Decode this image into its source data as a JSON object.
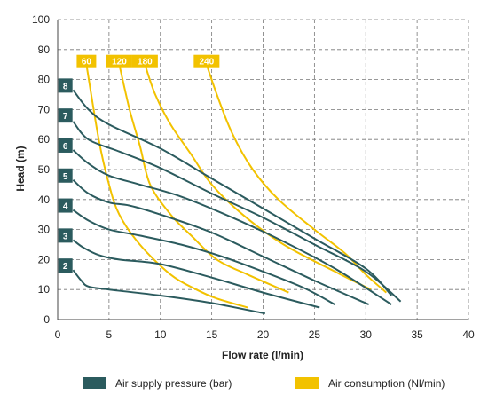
{
  "chart_data": {
    "type": "line",
    "xlabel": "Flow rate (l/min)",
    "ylabel": "Head (m)",
    "xlim": [
      0,
      40
    ],
    "ylim": [
      0,
      100
    ],
    "xticks": [
      "0",
      "5",
      "10",
      "15",
      "20",
      "25",
      "30",
      "35",
      "40"
    ],
    "yticks": [
      "0",
      "10",
      "20",
      "30",
      "40",
      "50",
      "60",
      "70",
      "80",
      "90",
      "100"
    ],
    "grid": true,
    "legend_position": "bottom",
    "legend": [
      {
        "label": "Air supply pressure (bar)",
        "color": "#2b5b5e"
      },
      {
        "label": "Air consumption (Nl/min)",
        "color": "#f2c200"
      }
    ],
    "pressure_series": [
      {
        "tag": "2",
        "tag_value": 18,
        "points": [
          [
            1.5,
            16.5
          ],
          [
            2.3,
            13
          ],
          [
            3,
            11
          ],
          [
            5,
            10
          ],
          [
            10,
            8
          ],
          [
            15,
            5.5
          ],
          [
            20.2,
            2
          ]
        ]
      },
      {
        "tag": "3",
        "tag_value": 28,
        "points": [
          [
            1.5,
            26.5
          ],
          [
            2.5,
            24
          ],
          [
            4,
            21.5
          ],
          [
            6,
            20
          ],
          [
            10,
            18.5
          ],
          [
            15,
            14
          ],
          [
            20,
            9
          ],
          [
            25.5,
            4
          ]
        ]
      },
      {
        "tag": "4",
        "tag_value": 38,
        "points": [
          [
            1.5,
            36.5
          ],
          [
            3,
            33
          ],
          [
            5,
            30
          ],
          [
            8,
            28
          ],
          [
            12,
            25
          ],
          [
            16,
            21
          ],
          [
            20,
            16
          ],
          [
            24,
            10.5
          ],
          [
            27,
            5
          ]
        ]
      },
      {
        "tag": "5",
        "tag_value": 48,
        "points": [
          [
            1.5,
            46.5
          ],
          [
            3,
            42
          ],
          [
            5,
            39
          ],
          [
            7,
            38
          ],
          [
            10,
            35
          ],
          [
            15,
            29
          ],
          [
            20,
            21
          ],
          [
            25,
            13
          ],
          [
            30.3,
            5
          ]
        ]
      },
      {
        "tag": "6",
        "tag_value": 58,
        "points": [
          [
            1.5,
            56.5
          ],
          [
            3,
            52
          ],
          [
            5,
            48
          ],
          [
            8,
            45
          ],
          [
            12,
            41
          ],
          [
            17,
            34
          ],
          [
            22,
            26
          ],
          [
            27,
            17
          ],
          [
            32.5,
            5
          ]
        ]
      },
      {
        "tag": "7",
        "tag_value": 68,
        "points": [
          [
            1.5,
            66
          ],
          [
            3,
            60
          ],
          [
            6,
            56
          ],
          [
            10,
            50.5
          ],
          [
            15,
            42
          ],
          [
            20,
            34
          ],
          [
            25,
            25
          ],
          [
            30,
            16
          ],
          [
            33.4,
            6
          ]
        ]
      },
      {
        "tag": "8",
        "tag_value": 78,
        "points": [
          [
            1.5,
            76.5
          ],
          [
            3,
            70
          ],
          [
            5,
            65
          ],
          [
            10,
            57
          ],
          [
            15,
            47
          ],
          [
            20,
            37
          ],
          [
            25,
            27
          ],
          [
            30,
            17
          ],
          [
            32.5,
            8
          ]
        ]
      }
    ],
    "consumption_series": [
      {
        "tag": "60",
        "points": [
          [
            2.8,
            85
          ],
          [
            4,
            60
          ],
          [
            5,
            45
          ],
          [
            6,
            35
          ],
          [
            8,
            25
          ],
          [
            11,
            15
          ],
          [
            13.5,
            10
          ],
          [
            15.5,
            7
          ],
          [
            18.5,
            4
          ]
        ]
      },
      {
        "tag": "120",
        "points": [
          [
            6,
            85
          ],
          [
            7,
            70
          ],
          [
            8,
            58
          ],
          [
            9,
            45
          ],
          [
            11,
            35
          ],
          [
            13,
            28
          ],
          [
            15.5,
            20
          ],
          [
            18.5,
            15
          ],
          [
            22.5,
            9
          ]
        ]
      },
      {
        "tag": "180",
        "points": [
          [
            8.5,
            85
          ],
          [
            9.5,
            75
          ],
          [
            11,
            65
          ],
          [
            13,
            55
          ],
          [
            15,
            45
          ],
          [
            18,
            35
          ],
          [
            22,
            25
          ],
          [
            27,
            16
          ],
          [
            30.5,
            10
          ]
        ]
      },
      {
        "tag": "240",
        "points": [
          [
            14.5,
            85
          ],
          [
            15.5,
            75
          ],
          [
            17,
            62
          ],
          [
            19,
            50
          ],
          [
            21.5,
            40
          ],
          [
            25,
            30
          ],
          [
            28,
            22
          ],
          [
            30,
            15
          ],
          [
            32,
            9
          ]
        ]
      }
    ]
  },
  "colors": {
    "pressure": "#2b5b5e",
    "consumption": "#f2c200",
    "grid": "#777777",
    "axis": "#444444"
  }
}
